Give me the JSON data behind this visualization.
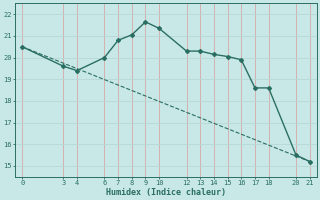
{
  "line1_x": [
    0,
    3,
    4,
    6,
    7,
    8,
    9,
    10,
    12,
    13,
    14,
    15,
    16,
    17,
    18,
    20,
    21
  ],
  "line1_y": [
    20.5,
    19.6,
    19.4,
    20.0,
    20.8,
    21.05,
    21.65,
    21.35,
    20.3,
    20.3,
    20.15,
    20.05,
    19.9,
    18.6,
    18.6,
    15.5,
    15.2
  ],
  "line2_x": [
    0,
    21
  ],
  "line2_y": [
    20.5,
    15.2
  ],
  "xlabel": "Humidex (Indice chaleur)",
  "xticks": [
    0,
    3,
    4,
    6,
    7,
    8,
    9,
    10,
    12,
    13,
    14,
    15,
    16,
    17,
    18,
    20,
    21
  ],
  "yticks": [
    15,
    16,
    17,
    18,
    19,
    20,
    21,
    22
  ],
  "ylim": [
    14.5,
    22.5
  ],
  "xlim": [
    -0.5,
    21.5
  ],
  "line_color": "#2a6e62",
  "bg_color": "#c8e8e8",
  "grid_color_v": "#d8a8a8",
  "grid_color_h": "#b8d8d8"
}
